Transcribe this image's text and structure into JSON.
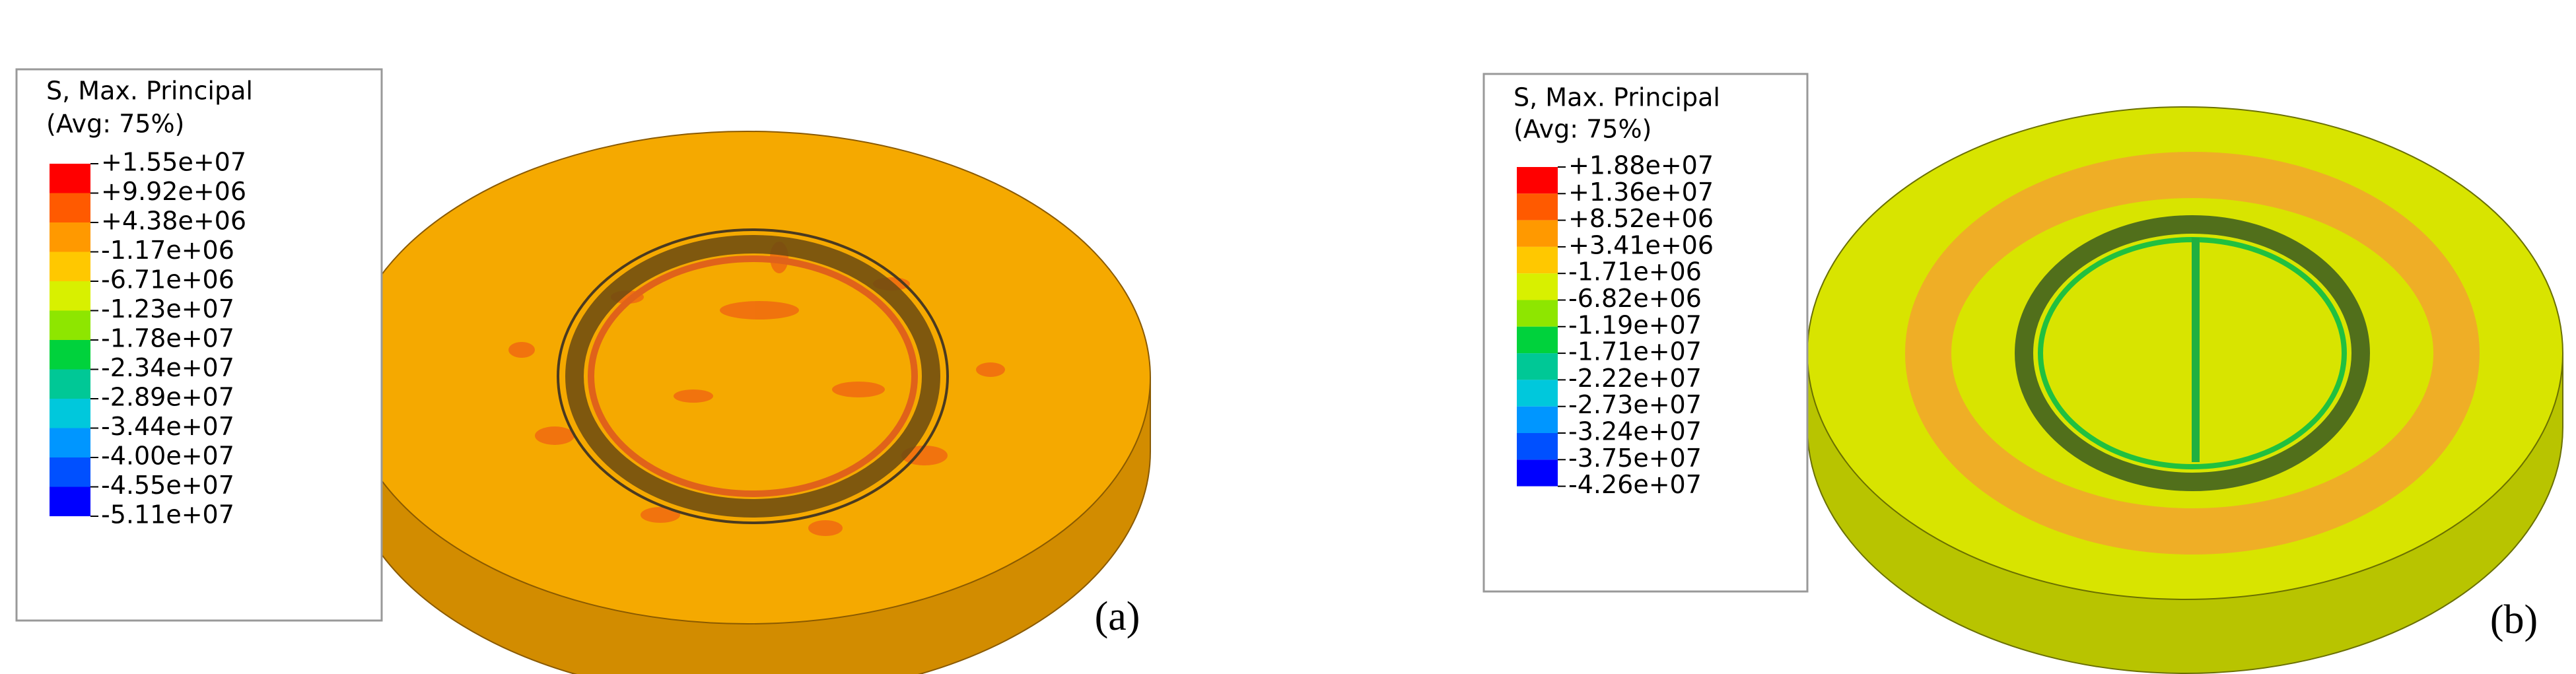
{
  "panels": [
    {
      "legend_title": [
        "S, Max. Principal",
        "(Avg: 75%)"
      ],
      "legend_labels": [
        "+1.55e+07",
        "+9.92e+06",
        "+4.38e+06",
        "-1.17e+06",
        "-6.71e+06",
        "-1.23e+07",
        "-1.78e+07",
        "-2.34e+07",
        "-2.89e+07",
        "-3.44e+07",
        "-4.00e+07",
        "-4.55e+07",
        "-5.11e+07"
      ],
      "label": "(a)"
    },
    {
      "legend_title": [
        "S, Max. Principal",
        "(Avg: 75%)"
      ],
      "legend_labels": [
        "+1.88e+07",
        "+1.36e+07",
        "+8.52e+06",
        "+3.41e+06",
        "-1.71e+06",
        "-6.82e+06",
        "-1.19e+07",
        "-1.71e+07",
        "-2.22e+07",
        "-2.73e+07",
        "-3.24e+07",
        "-3.75e+07",
        "-4.26e+07"
      ],
      "label": "(b)"
    }
  ]
}
